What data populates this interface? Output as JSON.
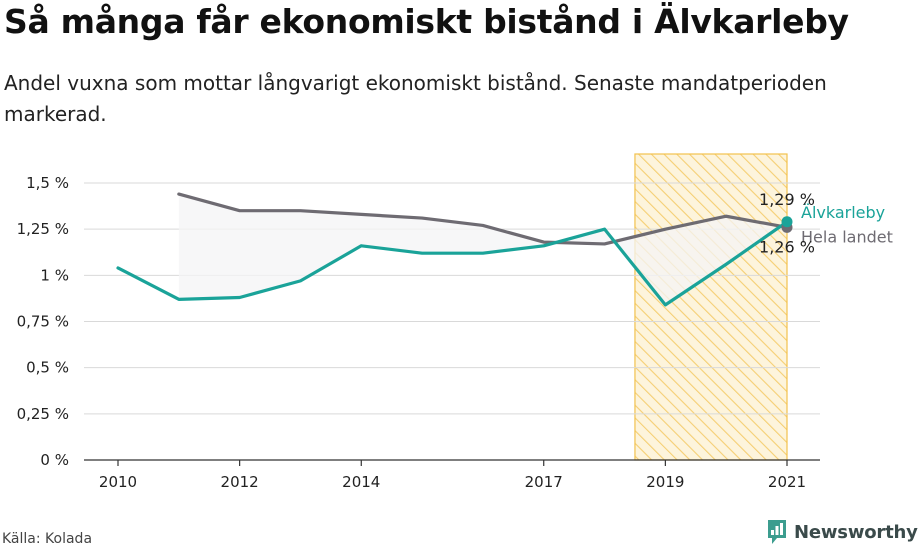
{
  "title": "Så många får ekonomiskt bistånd i Älvkarleby",
  "subtitle": "Andel vuxna som mottar långvarigt ekonomiskt bistånd. Senaste mandatperioden markerad.",
  "source": "Källa: Kolada",
  "brand": "Newsworthy",
  "colors": {
    "alvkarleby": "#1aa399",
    "hela_landet": "#6e6b72",
    "highlight_stroke": "#f2c14e",
    "highlight_fill": "#fbe7b0",
    "band_fill": "#f4f4f5",
    "grid": "#d9d9d9"
  },
  "chart_data": {
    "type": "line",
    "title": "Så många får ekonomiskt bistånd i Älvkarleby",
    "xlabel": "",
    "ylabel": "",
    "ylim": [
      0,
      1.5
    ],
    "xlim": [
      2010,
      2021
    ],
    "y_ticks": [
      0,
      0.25,
      0.5,
      0.75,
      1,
      1.25,
      1.5
    ],
    "y_tick_labels": [
      "0 %",
      "0,25 %",
      "0,5 %",
      "0,75 %",
      "1 %",
      "1,25 %",
      "1,5 %"
    ],
    "x_ticks": [
      2010,
      2012,
      2014,
      2017,
      2019,
      2021
    ],
    "x_tick_labels": [
      "2010",
      "2012",
      "2014",
      "2017",
      "2019",
      "2021"
    ],
    "highlight_period": [
      2018.5,
      2021
    ],
    "grid": "horizontal",
    "series": [
      {
        "name": "Älvkarleby",
        "x": [
          2010,
          2011,
          2012,
          2013,
          2014,
          2015,
          2016,
          2017,
          2018,
          2019,
          2020,
          2021
        ],
        "values": [
          1.04,
          0.87,
          0.88,
          0.97,
          1.16,
          1.12,
          1.12,
          1.16,
          1.25,
          0.84,
          1.06,
          1.29
        ]
      },
      {
        "name": "Hela landet",
        "x": [
          2011,
          2012,
          2013,
          2014,
          2015,
          2016,
          2017,
          2018,
          2019,
          2020,
          2021
        ],
        "values": [
          1.44,
          1.35,
          1.35,
          1.33,
          1.31,
          1.27,
          1.18,
          1.17,
          1.25,
          1.32,
          1.26
        ]
      }
    ],
    "end_labels": [
      {
        "series": "Älvkarleby",
        "value_text": "1,29 %"
      },
      {
        "series": "Hela landet",
        "value_text": "1,26 %"
      }
    ]
  }
}
